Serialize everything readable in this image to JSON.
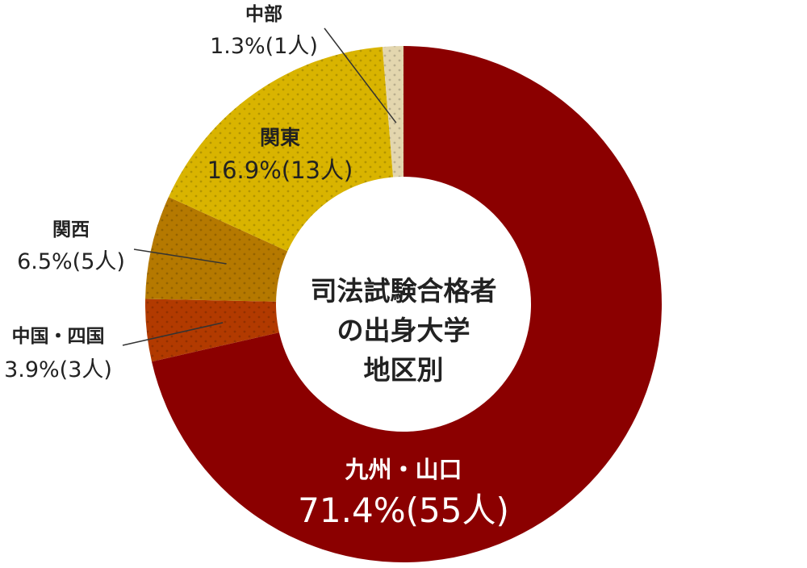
{
  "chart_data": {
    "type": "pie",
    "title": "",
    "center_text": [
      "司法試験合格者",
      "の出身大学",
      "地区別"
    ],
    "slices": [
      {
        "region": "九州・山口",
        "percent_label": "71.4%",
        "count_label": "(55人)",
        "value": 55,
        "color": "#8b0000"
      },
      {
        "region": "中国・四国",
        "percent_label": "3.9%",
        "count_label": "(3人)",
        "value": 3,
        "color": "#b23a00"
      },
      {
        "region": "関西",
        "percent_label": "6.5%",
        "count_label": "(5人)",
        "value": 5,
        "color": "#b57900"
      },
      {
        "region": "関東",
        "percent_label": "16.9%",
        "count_label": "(13人)",
        "value": 13,
        "color": "#d9b400"
      },
      {
        "region": "中部",
        "percent_label": "1.3%",
        "count_label": "(1人)",
        "value": 1,
        "color": "#e3d6ae"
      }
    ]
  }
}
